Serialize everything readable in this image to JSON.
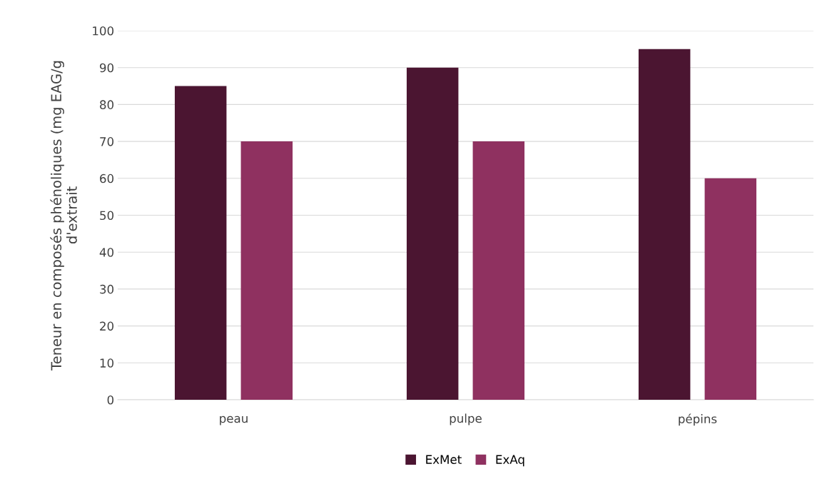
{
  "chart_data": {
    "type": "bar",
    "ylabel": "Teneur en composés phénoliques (mg EAG/g\nd'extrait",
    "categories": [
      "peau",
      "pulpe",
      "pépins"
    ],
    "series": [
      {
        "name": "ExMet",
        "color": "#4b1531",
        "values": [
          85,
          90,
          95
        ]
      },
      {
        "name": "ExAq",
        "color": "#8f3160",
        "values": [
          70,
          70,
          60
        ]
      }
    ],
    "ylim": [
      0,
      100
    ],
    "yticks": [
      0,
      10,
      20,
      30,
      40,
      50,
      60,
      70,
      80,
      90,
      100
    ],
    "grid": "y",
    "legend": "bottom"
  }
}
